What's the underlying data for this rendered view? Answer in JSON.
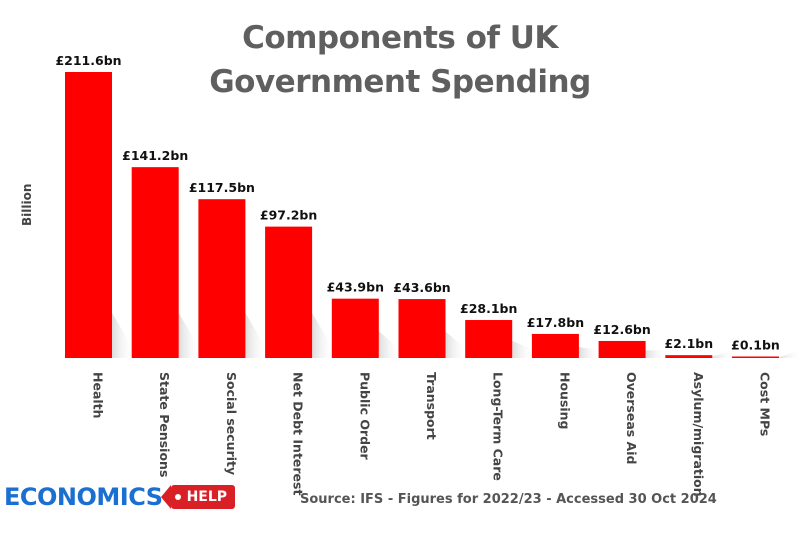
{
  "title_lines": [
    "Components of UK",
    "Government Spending"
  ],
  "source": "Source: IFS - Figures for 2022/23 - Accessed 30 Oct 2024",
  "logo": {
    "text": "ECONOMICS",
    "tag": "HELP",
    "text_color": "#1a6fd0",
    "tag_color": "#d92026"
  },
  "chart_data": {
    "type": "bar",
    "title": "Components of UK Government Spending",
    "ylabel": "Billion",
    "xlabel": "",
    "ylim": [
      0,
      211.6
    ],
    "grid": false,
    "bar_color": "#ff0000",
    "categories": [
      "Health",
      "State Pensions",
      "Social security",
      "Net Debt Interest",
      "Public Order",
      "Transport",
      "Long-Term Care",
      "Housing",
      "Overseas Aid",
      "Asylum/migration",
      "Cost MPs"
    ],
    "values": [
      211.6,
      141.2,
      117.5,
      97.2,
      43.9,
      43.6,
      28.1,
      17.8,
      12.6,
      2.1,
      0.1
    ],
    "data_labels": [
      "£211.6bn",
      "£141.2bn",
      "£117.5bn",
      "£97.2bn",
      "£43.9bn",
      "£43.6bn",
      "£28.1bn",
      "£17.8bn",
      "£12.6bn",
      "£2.1bn",
      "£0.1bn"
    ]
  }
}
